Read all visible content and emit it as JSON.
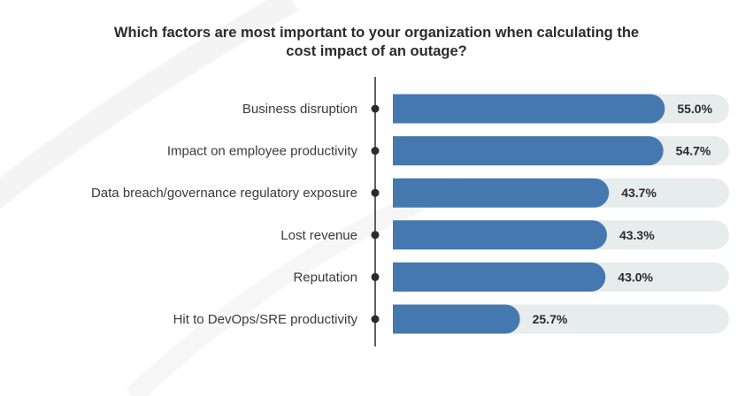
{
  "chart_data": {
    "type": "bar",
    "orientation": "horizontal",
    "title_lines": [
      "Which factors are most important to your organization when calculating the",
      "cost impact of an outage?"
    ],
    "categories": [
      "Business disruption",
      "Impact on employee productivity",
      "Data breach/governance regulatory exposure",
      "Lost revenue",
      "Reputation",
      "Hit to DevOps/SRE productivity"
    ],
    "values": [
      55.0,
      54.7,
      43.7,
      43.3,
      43.0,
      25.7
    ],
    "value_labels": [
      "55.0%",
      "54.7%",
      "43.7%",
      "43.3%",
      "43.0%",
      "25.7%"
    ],
    "xlim": [
      0,
      68
    ],
    "grid": false,
    "legend": "none",
    "colors": {
      "bar": "#4478ae",
      "track": "#e7ecec",
      "axis": "#2b2b2b",
      "text": "#3a3a3a"
    }
  }
}
